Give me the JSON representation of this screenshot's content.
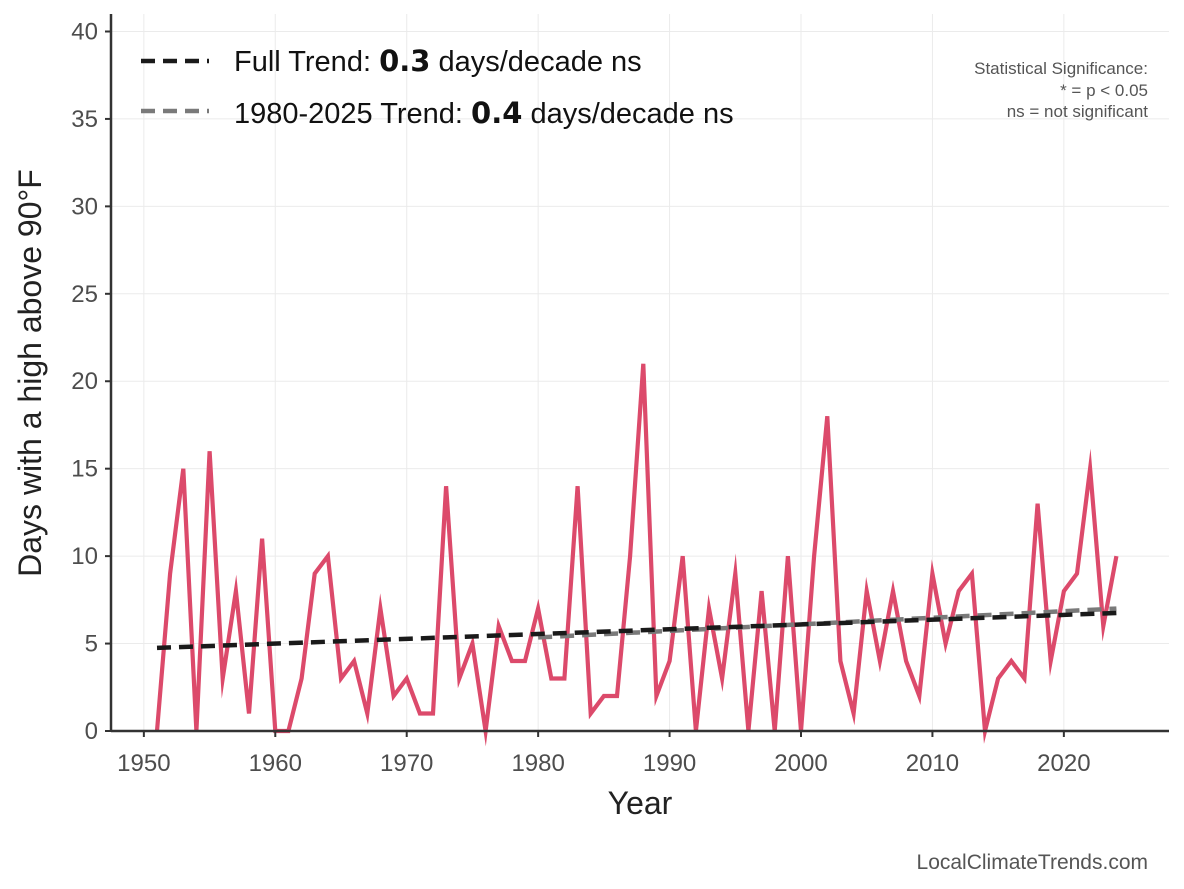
{
  "chart_data": {
    "type": "line",
    "xlabel": "Year",
    "ylabel": "Days with a high above 90°F",
    "xlim": [
      1947.5,
      2028
    ],
    "ylim": [
      0,
      41
    ],
    "x_ticks": [
      1950,
      1960,
      1970,
      1980,
      1990,
      2000,
      2010,
      2020
    ],
    "y_ticks": [
      0,
      5,
      10,
      15,
      20,
      25,
      30,
      35,
      40
    ],
    "grid": true,
    "legend_position": "top-left",
    "colors": {
      "series": "#dc4a6b",
      "full_trend": "#1a1a1a",
      "recent_trend": "#7a7a7a",
      "grid": "#ebebeb",
      "axis": "#333333"
    },
    "series": [
      {
        "x": [
          1951,
          1952,
          1953,
          1954,
          1955,
          1956,
          1957,
          1958,
          1959,
          1960,
          1961,
          1962,
          1963,
          1964,
          1965,
          1966,
          1967,
          1968,
          1969,
          1970,
          1971,
          1972,
          1973,
          1974,
          1975,
          1976,
          1977,
          1978,
          1979,
          1980,
          1981,
          1982,
          1983,
          1984,
          1985,
          1986,
          1987,
          1988,
          1989,
          1990,
          1991,
          1992,
          1993,
          1994,
          1995,
          1996,
          1997,
          1998,
          1999,
          2000,
          2001,
          2002,
          2003,
          2004,
          2005,
          2006,
          2007,
          2008,
          2009,
          2010,
          2011,
          2012,
          2013,
          2014,
          2015,
          2016,
          2017,
          2018,
          2019,
          2020,
          2021,
          2022,
          2023,
          2024
        ],
        "values": [
          0,
          9,
          15,
          0,
          16,
          3,
          8,
          1,
          11,
          0,
          0,
          3,
          9,
          10,
          3,
          4,
          1,
          7,
          2,
          3,
          1,
          1,
          14,
          3,
          5,
          0,
          6,
          4,
          4,
          7,
          3,
          3,
          14,
          1,
          2,
          2,
          10,
          21,
          2,
          4,
          10,
          0,
          7,
          3,
          9,
          0,
          8,
          0,
          10,
          0,
          10,
          18,
          4,
          1,
          8,
          4,
          8,
          4,
          2,
          9,
          5,
          8,
          9,
          0,
          3,
          4,
          3,
          13,
          4,
          8,
          9,
          15,
          6,
          10
        ]
      }
    ],
    "trends": [
      {
        "label_prefix": "Full Trend: ",
        "value": "0.3",
        "label_suffix": " days/decade ns",
        "x": [
          1951,
          2024
        ],
        "y": [
          4.75,
          6.75
        ]
      },
      {
        "label_prefix": "1980-2025 Trend: ",
        "value": "0.4",
        "label_suffix": " days/decade ns",
        "x": [
          1980,
          2024
        ],
        "y": [
          5.35,
          7.0
        ]
      }
    ]
  },
  "significance_note": {
    "title": "Statistical Significance:",
    "line1": "* = p < 0.05",
    "line2": "ns = not significant"
  },
  "credit": "LocalClimateTrends.com"
}
